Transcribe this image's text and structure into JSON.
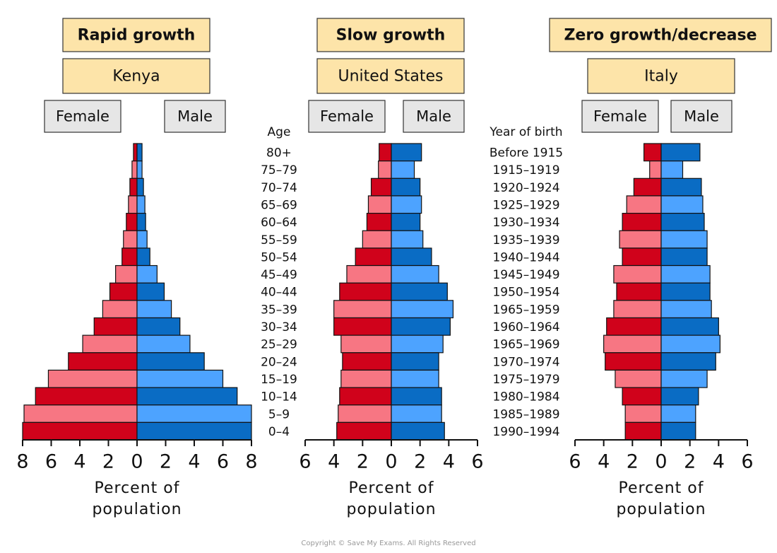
{
  "chart_data": [
    {
      "type": "pyramid",
      "title": "Rapid growth",
      "subtitle": "Kenya",
      "category_title": "Age",
      "categories": [
        "80+",
        "75–79",
        "70–74",
        "65–69",
        "60–64",
        "55–59",
        "50–54",
        "45–49",
        "40–44",
        "35–39",
        "30–34",
        "25–29",
        "20–24",
        "15–19",
        "10–14",
        "5–9",
        "0–4"
      ],
      "series": [
        {
          "name": "Female",
          "color": "#d0021b",
          "alt_color": "#f77683",
          "values": [
            0.25,
            0.35,
            0.5,
            0.6,
            0.75,
            0.95,
            1.05,
            1.5,
            1.9,
            2.4,
            3.0,
            3.8,
            4.8,
            6.2,
            7.1,
            7.9,
            8.0
          ]
        },
        {
          "name": "Male",
          "color": "#0a6cc4",
          "alt_color": "#4da3ff",
          "values": [
            0.35,
            0.35,
            0.45,
            0.55,
            0.6,
            0.7,
            0.9,
            1.4,
            1.9,
            2.4,
            3.0,
            3.7,
            4.7,
            6.0,
            7.0,
            8.0,
            8.0
          ]
        }
      ],
      "xlabel": "Percent of population",
      "xlim": [
        -8,
        8
      ],
      "xticks": [
        {
          "value": -8,
          "label": "8"
        },
        {
          "value": -6,
          "label": "6"
        },
        {
          "value": -4,
          "label": "4"
        },
        {
          "value": -2,
          "label": "2"
        },
        0,
        2,
        4,
        6,
        8
      ]
    },
    {
      "type": "pyramid",
      "title": "Slow growth",
      "subtitle": "United States",
      "series": [
        {
          "name": "Female",
          "color": "#d0021b",
          "alt_color": "#f77683",
          "values": [
            0.85,
            0.9,
            1.4,
            1.6,
            1.7,
            2.0,
            2.5,
            3.1,
            3.6,
            4.0,
            4.0,
            3.5,
            3.4,
            3.5,
            3.6,
            3.7,
            3.8
          ]
        },
        {
          "name": "Male",
          "color": "#0a6cc4",
          "alt_color": "#4da3ff",
          "values": [
            2.1,
            1.6,
            2.0,
            2.1,
            2.0,
            2.2,
            2.8,
            3.3,
            3.9,
            4.3,
            4.1,
            3.6,
            3.3,
            3.3,
            3.5,
            3.5,
            3.7
          ]
        }
      ],
      "xlabel": "Percent of population",
      "xlim": [
        -6,
        6
      ],
      "xticks": [
        {
          "value": -6,
          "label": "6"
        },
        {
          "value": -4,
          "label": "4"
        },
        {
          "value": -2,
          "label": "2"
        },
        0,
        2,
        4,
        6
      ]
    },
    {
      "type": "pyramid",
      "title": "Zero growth/decrease",
      "subtitle": "Italy",
      "category_title": "Year of birth",
      "categories": [
        "Before 1915",
        "1915–1919",
        "1920–1924",
        "1925–1929",
        "1930–1934",
        "1935–1939",
        "1940–1944",
        "1945–1949",
        "1950–1954",
        "1965–1959",
        "1960–1964",
        "1965–1969",
        "1970–1974",
        "1975–1979",
        "1980–1984",
        "1985–1989",
        "1990–1994"
      ],
      "series": [
        {
          "name": "Female",
          "color": "#d0021b",
          "alt_color": "#f77683",
          "values": [
            1.2,
            0.8,
            1.9,
            2.4,
            2.7,
            2.9,
            2.7,
            3.3,
            3.1,
            3.3,
            3.8,
            4.0,
            3.9,
            3.2,
            2.7,
            2.5,
            2.5
          ]
        },
        {
          "name": "Male",
          "color": "#0a6cc4",
          "alt_color": "#4da3ff",
          "values": [
            2.7,
            1.5,
            2.8,
            2.9,
            3.0,
            3.2,
            3.2,
            3.4,
            3.4,
            3.5,
            4.0,
            4.1,
            3.8,
            3.2,
            2.6,
            2.4,
            2.4
          ]
        }
      ],
      "xlabel": "Percent of population",
      "xlim": [
        -6,
        6
      ],
      "xticks": [
        {
          "value": -6,
          "label": "6"
        },
        {
          "value": -4,
          "label": "4"
        },
        {
          "value": -2,
          "label": "2"
        },
        0,
        2,
        4,
        6
      ]
    }
  ],
  "footer": "Copyright © Save My Exams. All Rights Reserved"
}
